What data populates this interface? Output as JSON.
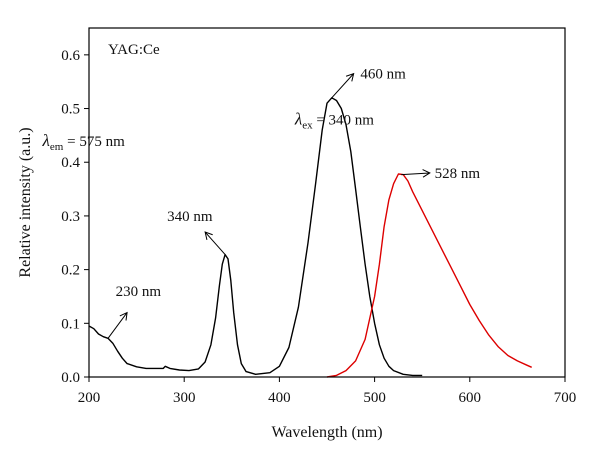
{
  "chart_data": {
    "type": "line",
    "xlabel": "Wavelength (nm)",
    "ylabel": "Relative intensity (a.u.)",
    "xlim": [
      200,
      700
    ],
    "ylim": [
      0,
      0.65
    ],
    "x_ticks": [
      200,
      300,
      400,
      500,
      600,
      700
    ],
    "y_ticks": [
      0.0,
      0.1,
      0.2,
      0.3,
      0.4,
      0.5,
      0.6
    ],
    "y_tick_labels": [
      "0.0",
      "0.1",
      "0.2",
      "0.3",
      "0.4",
      "0.5",
      "0.6"
    ],
    "grid": false,
    "sample_label": "YAG:Ce",
    "series": [
      {
        "color": "#000000",
        "points": [
          [
            200,
            0.095
          ],
          [
            205,
            0.09
          ],
          [
            210,
            0.08
          ],
          [
            215,
            0.075
          ],
          [
            220,
            0.072
          ],
          [
            225,
            0.063
          ],
          [
            230,
            0.048
          ],
          [
            235,
            0.035
          ],
          [
            240,
            0.025
          ],
          [
            250,
            0.019
          ],
          [
            260,
            0.016
          ],
          [
            270,
            0.016
          ],
          [
            278,
            0.016
          ],
          [
            280,
            0.02
          ],
          [
            285,
            0.016
          ],
          [
            295,
            0.013
          ],
          [
            305,
            0.012
          ],
          [
            315,
            0.015
          ],
          [
            322,
            0.028
          ],
          [
            328,
            0.06
          ],
          [
            333,
            0.11
          ],
          [
            337,
            0.17
          ],
          [
            340,
            0.21
          ],
          [
            343,
            0.228
          ],
          [
            346,
            0.22
          ],
          [
            349,
            0.18
          ],
          [
            352,
            0.12
          ],
          [
            356,
            0.06
          ],
          [
            360,
            0.025
          ],
          [
            365,
            0.01
          ],
          [
            375,
            0.005
          ],
          [
            390,
            0.008
          ],
          [
            400,
            0.02
          ],
          [
            410,
            0.055
          ],
          [
            420,
            0.13
          ],
          [
            430,
            0.25
          ],
          [
            438,
            0.36
          ],
          [
            445,
            0.46
          ],
          [
            450,
            0.51
          ],
          [
            455,
            0.52
          ],
          [
            460,
            0.515
          ],
          [
            465,
            0.5
          ],
          [
            470,
            0.47
          ],
          [
            475,
            0.42
          ],
          [
            480,
            0.35
          ],
          [
            485,
            0.28
          ],
          [
            490,
            0.21
          ],
          [
            495,
            0.15
          ],
          [
            500,
            0.1
          ],
          [
            505,
            0.06
          ],
          [
            510,
            0.035
          ],
          [
            515,
            0.02
          ],
          [
            520,
            0.012
          ],
          [
            530,
            0.005
          ],
          [
            540,
            0.003
          ],
          [
            550,
            0.003
          ]
        ]
      },
      {
        "color": "#dd0000",
        "points": [
          [
            450,
            0.0
          ],
          [
            460,
            0.003
          ],
          [
            470,
            0.012
          ],
          [
            480,
            0.03
          ],
          [
            490,
            0.07
          ],
          [
            500,
            0.15
          ],
          [
            505,
            0.21
          ],
          [
            510,
            0.28
          ],
          [
            515,
            0.33
          ],
          [
            520,
            0.36
          ],
          [
            525,
            0.378
          ],
          [
            530,
            0.377
          ],
          [
            535,
            0.365
          ],
          [
            540,
            0.345
          ],
          [
            550,
            0.31
          ],
          [
            560,
            0.275
          ],
          [
            570,
            0.24
          ],
          [
            580,
            0.205
          ],
          [
            590,
            0.17
          ],
          [
            600,
            0.135
          ],
          [
            610,
            0.105
          ],
          [
            620,
            0.078
          ],
          [
            630,
            0.056
          ],
          [
            640,
            0.04
          ],
          [
            650,
            0.03
          ],
          [
            660,
            0.022
          ],
          [
            665,
            0.018
          ]
        ]
      }
    ],
    "annotations": [
      {
        "text": "230 nm",
        "point": [
          220,
          0.072
        ],
        "arrow_to": [
          240,
          0.12
        ],
        "label_at": [
          228,
          0.16
        ]
      },
      {
        "text": "340 nm",
        "point": [
          343,
          0.228
        ],
        "arrow_to": [
          322,
          0.27
        ],
        "label_at": [
          282,
          0.3
        ]
      },
      {
        "text": "460 nm",
        "point": [
          455,
          0.52
        ],
        "arrow_to": [
          478,
          0.565
        ],
        "label_at": [
          485,
          0.565
        ]
      },
      {
        "text": "528 nm",
        "point": [
          528,
          0.377
        ],
        "arrow_to": [
          558,
          0.38
        ],
        "label_at": [
          563,
          0.38
        ]
      }
    ],
    "labels": [
      {
        "main": "λ",
        "sub": "em",
        "rest": " = 575 nm",
        "at": [
          272,
          0.44
        ]
      },
      {
        "main": "λ",
        "sub": "ex",
        "rest": " = 340 nm",
        "at": [
          537,
          0.48
        ]
      }
    ]
  }
}
